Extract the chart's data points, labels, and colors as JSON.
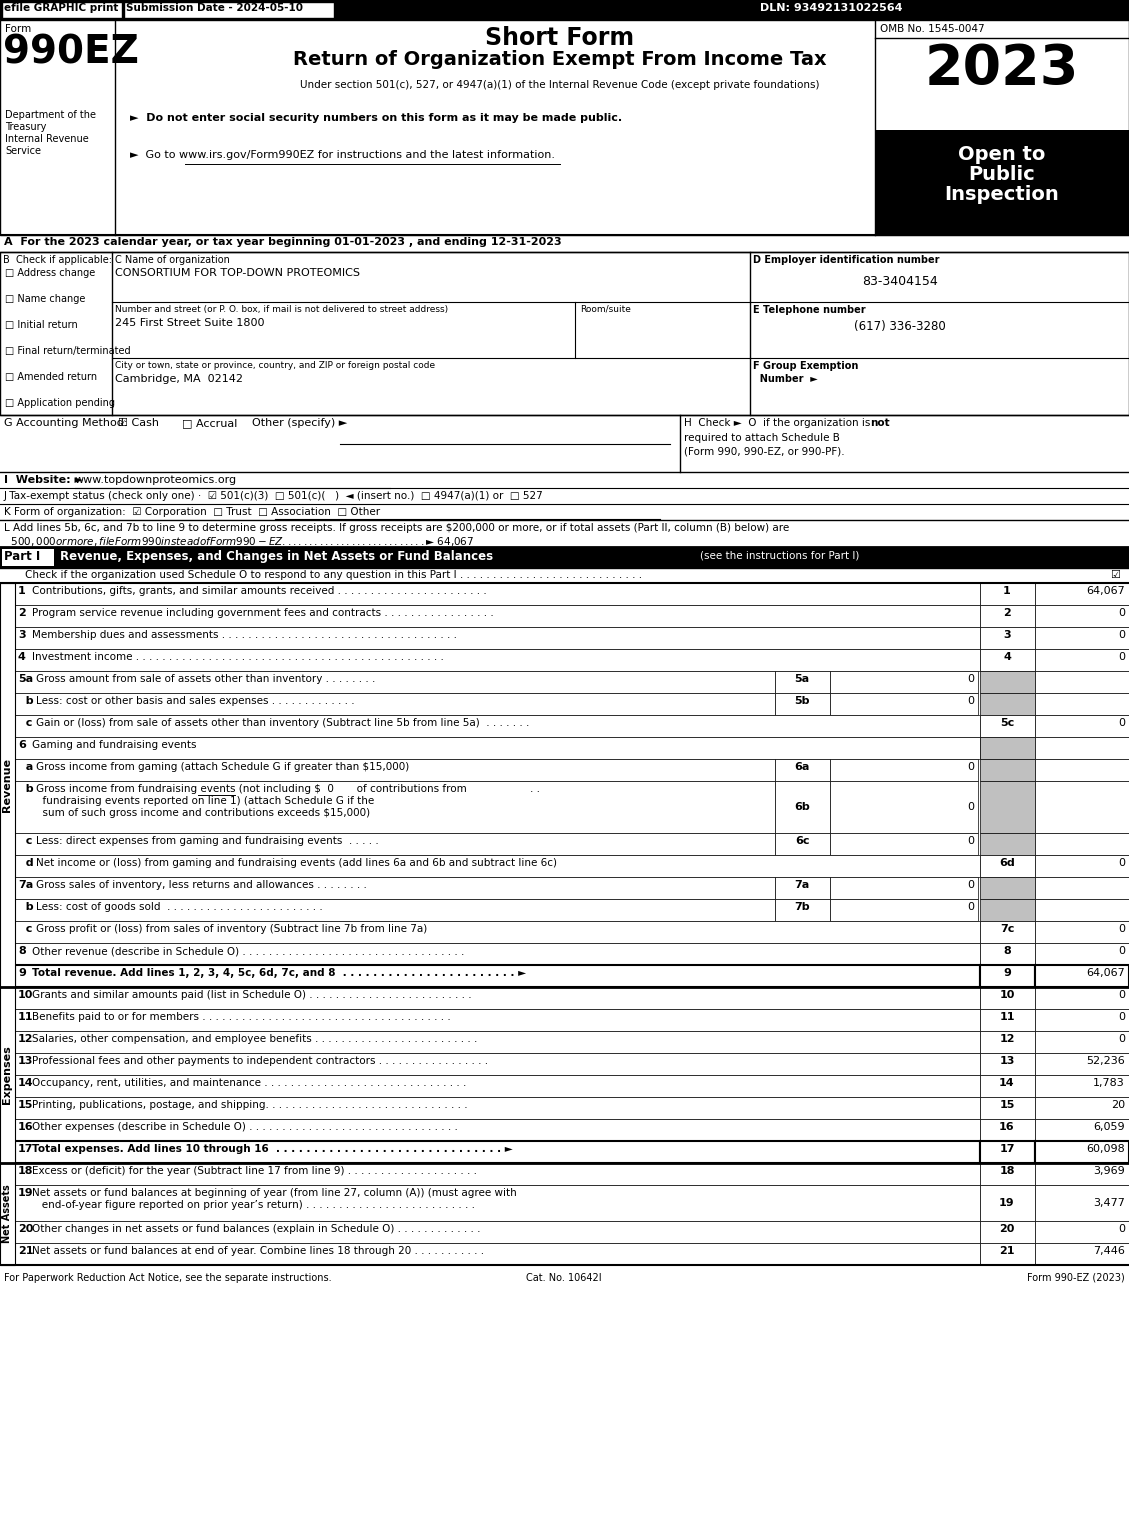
{
  "efile_text": "efile GRAPHIC print",
  "submission_text": "Submission Date - 2024-05-10",
  "dln_text": "DLN: 93492131022564",
  "form_label": "Form",
  "form_number": "990EZ",
  "short_form_title": "Short Form",
  "main_title": "Return of Organization Exempt From Income Tax",
  "under_section": "Under section 501(c), 527, or 4947(a)(1) of the Internal Revenue Code (except private foundations)",
  "bullet1": "►  Do not enter social security numbers on this form as it may be made public.",
  "bullet2": "►  Go to www.irs.gov/Form990EZ for instructions and the latest information.",
  "omb_label": "OMB No. 1545-0047",
  "year": "2023",
  "open_to_public": "Open to\nPublic\nInspection",
  "dept_text": "Department of the\nTreasury\nInternal Revenue\nService",
  "section_a": "A  For the 2023 calendar year, or tax year beginning 01-01-2023 , and ending 12-31-2023",
  "checkboxes_b": [
    "Address change",
    "Name change",
    "Initial return",
    "Final return/terminated",
    "Amended return",
    "Application pending"
  ],
  "org_name": "CONSORTIUM FOR TOP-DOWN PROTEOMICS",
  "address_label": "Number and street (or P. O. box, if mail is not delivered to street address)",
  "address_value": "245 First Street Suite 1800",
  "city_label": "City or town, state or province, country, and ZIP or foreign postal code",
  "city_value": "Cambridge, MA  02142",
  "ein_value": "83-3404154",
  "phone_value": "(617) 336-3280",
  "website": "www.topdownproteomics.org",
  "section_j": "J Tax-exempt status (check only one) ·  ☑ 501(c)(3)  □ 501(c)(   )  ◄ (insert no.)  □ 4947(a)(1) or  □ 527",
  "section_k": "K Form of organization:  ☑ Corporation  □ Trust  □ Association  □ Other",
  "section_l1": "L Add lines 5b, 6c, and 7b to line 9 to determine gross receipts. If gross receipts are $200,000 or more, or if total assets (Part II, column (B) below) are",
  "section_l2": "  $500,000 or more, file Form 990 instead of Form 990-EZ . . . . . . . . . . . . . . . . . . . . . . . . . . . ► $ 64,067",
  "part1_header": "Revenue, Expenses, and Changes in Net Assets or Fund Balances",
  "part1_sub": "(see the instructions for Part I)",
  "part1_check": "Check if the organization used Schedule O to respond to any question in this Part I . . . . . . . . . . . . . . . . . . . . . . . . . . . .",
  "revenue_lines": [
    {
      "num": "1",
      "text": "Contributions, gifts, grants, and similar amounts received . . . . . . . . . . . . . . . . . . . . . . .",
      "line_num": "1",
      "value": "64,067",
      "gray": false
    },
    {
      "num": "2",
      "text": "Program service revenue including government fees and contracts . . . . . . . . . . . . . . . . .",
      "line_num": "2",
      "value": "0",
      "gray": false
    },
    {
      "num": "3",
      "text": "Membership dues and assessments . . . . . . . . . . . . . . . . . . . . . . . . . . . . . . . . . . . .",
      "line_num": "3",
      "value": "0",
      "gray": false
    },
    {
      "num": "4",
      "text": "Investment income . . . . . . . . . . . . . . . . . . . . . . . . . . . . . . . . . . . . . . . . . . . . . . .",
      "line_num": "4",
      "value": "0",
      "gray": false
    }
  ],
  "expenses_lines": [
    {
      "num": "10",
      "text": "Grants and similar amounts paid (list in Schedule O) . . . . . . . . . . . . . . . . . . . . . . . . .",
      "value": "0",
      "bold": false
    },
    {
      "num": "11",
      "text": "Benefits paid to or for members . . . . . . . . . . . . . . . . . . . . . . . . . . . . . . . . . . . . . .",
      "value": "0",
      "bold": false
    },
    {
      "num": "12",
      "text": "Salaries, other compensation, and employee benefits . . . . . . . . . . . . . . . . . . . . . . . . .",
      "value": "0",
      "bold": false
    },
    {
      "num": "13",
      "text": "Professional fees and other payments to independent contractors . . . . . . . . . . . . . . . . .",
      "value": "52,236",
      "bold": false
    },
    {
      "num": "14",
      "text": "Occupancy, rent, utilities, and maintenance . . . . . . . . . . . . . . . . . . . . . . . . . . . . . . .",
      "value": "1,783",
      "bold": false
    },
    {
      "num": "15",
      "text": "Printing, publications, postage, and shipping. . . . . . . . . . . . . . . . . . . . . . . . . . . . . . .",
      "value": "20",
      "bold": false
    },
    {
      "num": "16",
      "text": "Other expenses (describe in Schedule O) . . . . . . . . . . . . . . . . . . . . . . . . . . . . . . . .",
      "value": "6,059",
      "bold": false
    },
    {
      "num": "17",
      "text": "Total expenses. Add lines 10 through 16  . . . . . . . . . . . . . . . . . . . . . . . . . . . . . . ►",
      "value": "60,098",
      "bold": true
    }
  ],
  "net_assets_lines": [
    {
      "num": "18",
      "text": "Excess or (deficit) for the year (Subtract line 17 from line 9) . . . . . . . . . . . . . . . . . . . .",
      "value": "3,969",
      "two_line": false
    },
    {
      "num": "19",
      "text1": "Net assets or fund balances at beginning of year (from line 27, column (A)) (must agree with",
      "text2": "   end-of-year figure reported on prior year’s return) . . . . . . . . . . . . . . . . . . . . . . . . . .",
      "value": "3,477",
      "two_line": true
    },
    {
      "num": "20",
      "text": "Other changes in net assets or fund balances (explain in Schedule O) . . . . . . . . . . . . .",
      "value": "0",
      "two_line": false
    },
    {
      "num": "21",
      "text": "Net assets or fund balances at end of year. Combine lines 18 through 20 . . . . . . . . . . .",
      "value": "7,446",
      "two_line": false
    }
  ],
  "footer_left": "For Paperwork Reduction Act Notice, see the separate instructions.",
  "footer_cat": "Cat. No. 10642I",
  "footer_right": "Form 990-EZ (2023)"
}
